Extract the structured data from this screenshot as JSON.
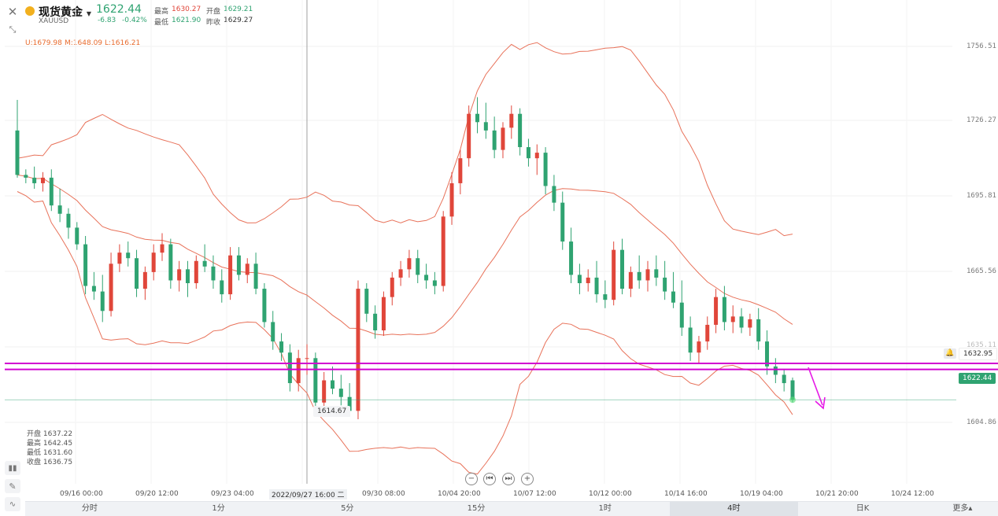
{
  "header": {
    "title": "现货黄金",
    "symbol": "XAUUSD",
    "price": "1622.44",
    "change": "-6.83",
    "change_pct": "-0.42%",
    "high_label": "最高",
    "high": "1630.27",
    "low_label": "最低",
    "low": "1621.90",
    "open_label": "开盘",
    "open": "1629.21",
    "prev_close_label": "昨收",
    "prev_close": "1629.27"
  },
  "indicator": {
    "upper": "U:1679.98",
    "middle": "M:1648.09",
    "lower": "L:1616.21"
  },
  "ohlc_box": {
    "open": "开盘 1637.22",
    "high": "最高 1642.45",
    "low": "最低 1631.60",
    "close": "收盘 1636.75"
  },
  "y_ticks": [
    "1756.51",
    "1726.27",
    "1695.81",
    "1665.56",
    "1604.86"
  ],
  "y_tag_partial": "1635.11",
  "alert_price": "1632.95",
  "current_price_tag": "1622.44",
  "crosshair_low": "1614.67",
  "x_ticks": [
    "09/16 00:00",
    "09/20 12:00",
    "09/23 04:00",
    "09/30 08:00",
    "10/04 20:00",
    "10/07 12:00",
    "10/12 00:00",
    "10/14 16:00",
    "10/19 04:00",
    "10/21 20:00",
    "10/24 12:00"
  ],
  "crosshair_time": "2022/09/27 16:00 二",
  "tabs": [
    "分时",
    "1分",
    "5分",
    "15分",
    "1时",
    "4时",
    "日K"
  ],
  "active_tab": "4时",
  "more": "更多▴",
  "colors": {
    "up": "#e0463a",
    "down": "#2fa371",
    "band": "#e8725a",
    "hline": "#d100d1",
    "arrow": "#e619e6"
  },
  "chart_data": {
    "type": "candlestick",
    "title": "",
    "ylim": [
      1596,
      1766
    ],
    "horizontal_lines": [
      1635.11,
      1632.95
    ],
    "candles": [
      [
        1719,
        1730,
        1702,
        1703
      ],
      [
        1703,
        1705,
        1700,
        1702
      ],
      [
        1702,
        1706,
        1698,
        1700
      ],
      [
        1700,
        1704,
        1697,
        1702
      ],
      [
        1702,
        1705,
        1690,
        1692
      ],
      [
        1692,
        1698,
        1686,
        1689
      ],
      [
        1689,
        1691,
        1680,
        1684
      ],
      [
        1684,
        1686,
        1676,
        1678
      ],
      [
        1678,
        1681,
        1660,
        1663
      ],
      [
        1663,
        1668,
        1658,
        1661
      ],
      [
        1661,
        1667,
        1650,
        1654
      ],
      [
        1654,
        1675,
        1652,
        1671
      ],
      [
        1671,
        1678,
        1668,
        1675
      ],
      [
        1675,
        1679,
        1670,
        1673
      ],
      [
        1673,
        1676,
        1659,
        1662
      ],
      [
        1662,
        1670,
        1658,
        1668
      ],
      [
        1668,
        1678,
        1665,
        1675
      ],
      [
        1675,
        1682,
        1672,
        1678
      ],
      [
        1678,
        1680,
        1662,
        1665
      ],
      [
        1665,
        1672,
        1661,
        1669
      ],
      [
        1669,
        1672,
        1659,
        1664
      ],
      [
        1664,
        1674,
        1662,
        1672
      ],
      [
        1672,
        1678,
        1668,
        1670
      ],
      [
        1670,
        1674,
        1662,
        1665
      ],
      [
        1665,
        1669,
        1657,
        1660
      ],
      [
        1660,
        1677,
        1658,
        1674
      ],
      [
        1674,
        1677,
        1665,
        1667
      ],
      [
        1667,
        1673,
        1664,
        1671
      ],
      [
        1671,
        1675,
        1660,
        1662
      ],
      [
        1662,
        1664,
        1648,
        1650
      ],
      [
        1650,
        1654,
        1640,
        1643
      ],
      [
        1643,
        1646,
        1636,
        1639
      ],
      [
        1639,
        1642,
        1625,
        1628
      ],
      [
        1628,
        1640,
        1625,
        1637
      ],
      [
        1637,
        1642,
        1631,
        1637
      ],
      [
        1637,
        1639,
        1618,
        1621
      ],
      [
        1621,
        1632,
        1618,
        1629
      ],
      [
        1629,
        1634,
        1624,
        1626
      ],
      [
        1626,
        1631,
        1620,
        1623
      ],
      [
        1623,
        1628,
        1616,
        1618
      ],
      [
        1618,
        1665,
        1615,
        1662
      ],
      [
        1662,
        1664,
        1650,
        1653
      ],
      [
        1653,
        1656,
        1644,
        1647
      ],
      [
        1647,
        1661,
        1645,
        1659
      ],
      [
        1659,
        1668,
        1656,
        1666
      ],
      [
        1666,
        1672,
        1663,
        1669
      ],
      [
        1669,
        1676,
        1666,
        1673
      ],
      [
        1673,
        1676,
        1664,
        1667
      ],
      [
        1667,
        1671,
        1662,
        1665
      ],
      [
        1665,
        1668,
        1660,
        1663
      ],
      [
        1663,
        1690,
        1661,
        1688
      ],
      [
        1688,
        1704,
        1685,
        1700
      ],
      [
        1700,
        1712,
        1696,
        1709
      ],
      [
        1709,
        1728,
        1706,
        1725
      ],
      [
        1725,
        1731,
        1718,
        1722
      ],
      [
        1722,
        1729,
        1716,
        1719
      ],
      [
        1719,
        1724,
        1709,
        1712
      ],
      [
        1712,
        1722,
        1709,
        1720
      ],
      [
        1720,
        1728,
        1716,
        1725
      ],
      [
        1725,
        1727,
        1710,
        1713
      ],
      [
        1713,
        1716,
        1706,
        1709
      ],
      [
        1709,
        1714,
        1703,
        1711
      ],
      [
        1711,
        1713,
        1696,
        1699
      ],
      [
        1699,
        1703,
        1690,
        1693
      ],
      [
        1693,
        1697,
        1676,
        1679
      ],
      [
        1679,
        1684,
        1664,
        1667
      ],
      [
        1667,
        1671,
        1660,
        1664
      ],
      [
        1664,
        1669,
        1661,
        1666
      ],
      [
        1666,
        1672,
        1657,
        1660
      ],
      [
        1660,
        1665,
        1655,
        1658
      ],
      [
        1658,
        1679,
        1656,
        1676
      ],
      [
        1676,
        1680,
        1660,
        1662
      ],
      [
        1662,
        1670,
        1659,
        1668
      ],
      [
        1668,
        1674,
        1662,
        1665
      ],
      [
        1665,
        1672,
        1661,
        1669
      ],
      [
        1669,
        1674,
        1663,
        1666
      ],
      [
        1666,
        1672,
        1658,
        1661
      ],
      [
        1661,
        1668,
        1655,
        1657
      ],
      [
        1657,
        1665,
        1645,
        1648
      ],
      [
        1648,
        1652,
        1636,
        1639
      ],
      [
        1639,
        1645,
        1635,
        1643
      ],
      [
        1643,
        1652,
        1640,
        1649
      ],
      [
        1649,
        1662,
        1646,
        1659
      ],
      [
        1659,
        1663,
        1647,
        1650
      ],
      [
        1650,
        1656,
        1646,
        1652
      ],
      [
        1652,
        1655,
        1646,
        1648
      ],
      [
        1648,
        1653,
        1645,
        1651
      ],
      [
        1651,
        1655,
        1640,
        1643
      ],
      [
        1643,
        1647,
        1631,
        1634
      ],
      [
        1634,
        1637,
        1628,
        1631
      ],
      [
        1631,
        1633,
        1625,
        1628
      ],
      [
        1629,
        1630,
        1621,
        1622
      ]
    ]
  }
}
